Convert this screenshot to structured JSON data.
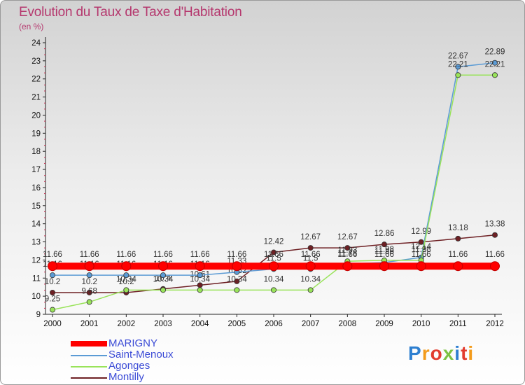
{
  "colors": {
    "title": "#b5386e",
    "legend_text": "#3b4bd6"
  },
  "logo": {
    "text": "Proxiti"
  },
  "chart_data": {
    "type": "line",
    "title": "Evolution du Taux de Taxe d'Habitation",
    "subtitle": "(en %)",
    "xlabel": "",
    "ylabel": "",
    "ylim": [
      9,
      24
    ],
    "yticks": [
      "9",
      "10",
      "11",
      "12",
      "13",
      "14",
      "15",
      "16",
      "17",
      "18",
      "19",
      "20",
      "21",
      "22",
      "23",
      "24"
    ],
    "categories": [
      "2000",
      "2001",
      "2002",
      "2003",
      "2004",
      "2005",
      "2006",
      "2007",
      "2008",
      "2009",
      "2010",
      "2011",
      "2012"
    ],
    "series": [
      {
        "name": "MARIGNY",
        "color": "#ff0000",
        "width": 10,
        "values": [
          11.66,
          11.66,
          11.66,
          11.66,
          11.66,
          11.66,
          11.66,
          11.66,
          11.66,
          11.66,
          11.66,
          11.66,
          11.66
        ],
        "labels": [
          "11.66",
          "11.66",
          "11.66",
          "11.66",
          "11.66",
          "11.66",
          "11.66",
          "11.66",
          "11.66",
          "11.66",
          "11.66",
          "11.66",
          "11.66"
        ]
      },
      {
        "name": "Saint-Menoux",
        "color": "#5b9bd5",
        "width": 1.5,
        "values": [
          11.16,
          11.16,
          11.16,
          11.16,
          11.16,
          11.33,
          11.5,
          11.5,
          11.78,
          11.86,
          12.14,
          22.67,
          22.89
        ],
        "labels": [
          "11.16",
          "11.16",
          "11.16",
          "11.16",
          "11.16",
          "11.33",
          "11.5",
          "11.5",
          "11.78",
          "11.86",
          "12.14",
          "22.67",
          "22.89"
        ]
      },
      {
        "name": "Agonges",
        "color": "#99e35a",
        "width": 1.5,
        "values": [
          9.25,
          9.68,
          10.34,
          10.34,
          10.34,
          10.34,
          10.34,
          10.34,
          11.93,
          11.98,
          11.98,
          22.21,
          22.21
        ],
        "labels": [
          "9.25",
          "9.68",
          "10.34",
          "10.34",
          "10.34",
          "10.34",
          "10.34",
          "10.34",
          "11.93",
          "11.98",
          "11.98",
          "22.21",
          "22.21"
        ]
      },
      {
        "name": "Montilly",
        "color": "#6e2024",
        "width": 1.5,
        "values": [
          10.2,
          10.2,
          10.2,
          10.4,
          10.61,
          10.82,
          12.42,
          12.67,
          12.67,
          12.86,
          12.99,
          13.18,
          13.38
        ],
        "labels": [
          "10.2",
          "10.2",
          "10.2",
          "10.4",
          "10.61",
          "10.82",
          "12.42",
          "12.67",
          "12.67",
          "12.86",
          "12.99",
          "13.18",
          "13.38"
        ]
      }
    ]
  }
}
